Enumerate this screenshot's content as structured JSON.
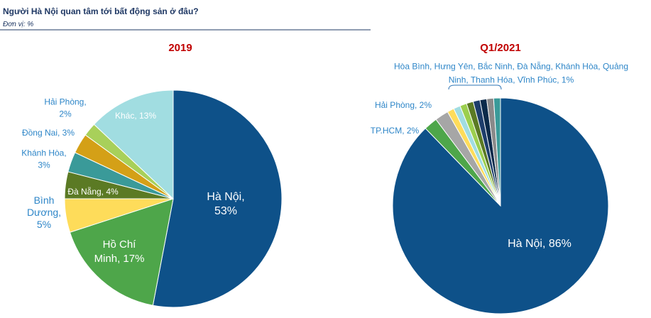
{
  "header": {
    "title": "Người Hà Nội quan tâm tới bất động sản ở đâu?",
    "unit": "Đơn vị: %"
  },
  "chart_data": [
    {
      "type": "pie",
      "title": "2019",
      "values": [
        53,
        17,
        5,
        4,
        3,
        3,
        2,
        13
      ],
      "value_labels": [
        "Hà Nội,\n53%",
        "Hồ Chí\nMinh, 17%",
        "Bình\nDương,\n5%",
        "Đà Nẵng, 4%",
        "Khánh Hòa,\n3%",
        "Đồng Nai, 3%",
        "Hải Phòng,\n2%",
        "Khác, 13%"
      ],
      "colors": [
        "#0e5189",
        "#4ea64a",
        "#fedc5a",
        "#5b7a24",
        "#3a9a99",
        "#d4a017",
        "#a8d05a",
        "#a1dde1"
      ]
    },
    {
      "type": "pie",
      "title": "Q1/2021",
      "values": [
        86,
        2,
        2,
        1,
        1,
        1,
        1,
        1,
        1,
        1,
        1
      ],
      "value_labels": [
        "Hà Nội, 86%",
        "TP.HCM, 2%",
        "Hải Phòng, 2%",
        null,
        null,
        null,
        null,
        null,
        null,
        null,
        null
      ],
      "annotation": "Hòa Bình, Hưng Yên, Bắc Ninh, Đà Nẵng, Khánh Hòa, Quảng\nNinh, Thanh Hóa, Vĩnh Phúc, 1%",
      "colors": [
        "#0e5189",
        "#4ea64a",
        "#a6a6a6",
        "#fedc5a",
        "#a1dde1",
        "#9ccf4f",
        "#5b7a24",
        "#1d3d6b",
        "#0b2a4a",
        "#8a8a8a",
        "#3a9a99"
      ]
    }
  ]
}
